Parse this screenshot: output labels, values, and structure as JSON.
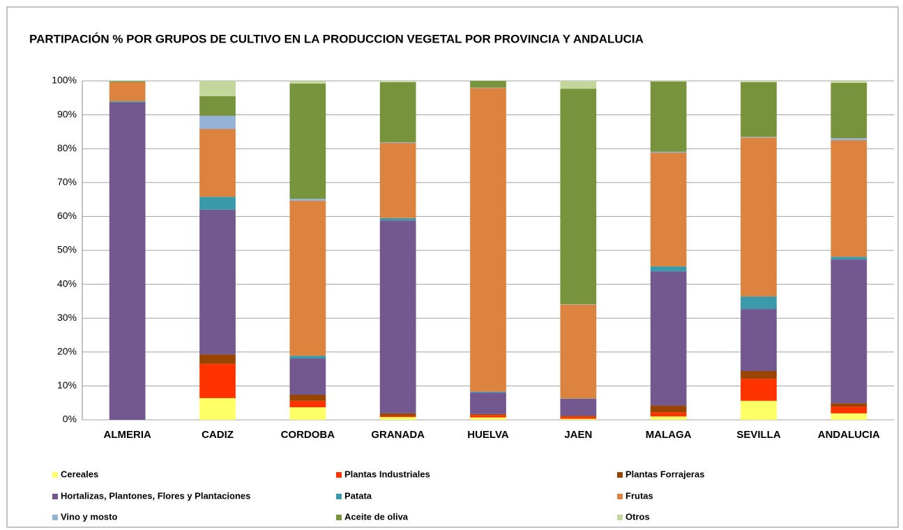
{
  "chart_data": {
    "type": "stacked_bar",
    "title": "PARTIPACIÓN  % POR  GRUPOS DE CULTIVO  EN  LA PRODUCCION VEGETAL POR PROVINCIA Y ANDALUCIA",
    "categories": [
      "ALMERIA",
      "CADIZ",
      "CORDOBA",
      "GRANADA",
      "HUELVA",
      "JAEN",
      "MALAGA",
      "SEVILLA",
      "ANDALUCIA"
    ],
    "series": [
      {
        "name": "Cereales",
        "color": "#ffff66",
        "values": [
          0,
          6.4,
          3.7,
          0.8,
          0.7,
          0.3,
          1.0,
          5.6,
          1.9
        ]
      },
      {
        "name": "Plantas Industriales",
        "color": "#ff3300",
        "values": [
          0,
          10.1,
          1.9,
          0.3,
          0.7,
          0.6,
          1.2,
          6.5,
          2.0
        ]
      },
      {
        "name": "Plantas Forrajeras",
        "color": "#994400",
        "values": [
          0,
          2.8,
          1.8,
          0.8,
          0.3,
          0.3,
          2.0,
          2.3,
          1.0
        ]
      },
      {
        "name": "Hortalizas, Plantones, Flores y Plantaciones",
        "color": "#73588f",
        "values": [
          93.7,
          42.7,
          10.7,
          56.9,
          6.3,
          5.0,
          39.6,
          18.3,
          42.4
        ]
      },
      {
        "name": "Patata",
        "color": "#3a9aaa",
        "values": [
          0.3,
          3.8,
          0.8,
          0.7,
          0.3,
          0.1,
          1.5,
          3.7,
          0.8
        ]
      },
      {
        "name": "Frutas",
        "color": "#dd8340",
        "values": [
          5.6,
          20.0,
          45.7,
          22.2,
          89.6,
          27.7,
          33.5,
          46.9,
          34.4
        ]
      },
      {
        "name": "Vino y mosto",
        "color": "#95b3d7",
        "values": [
          0,
          3.9,
          0.6,
          0.2,
          0.1,
          0.1,
          0.3,
          0.2,
          0.6
        ]
      },
      {
        "name": "Aceite de oliva",
        "color": "#77933c",
        "values": [
          0.3,
          5.8,
          34.0,
          17.7,
          2.0,
          63.6,
          20.7,
          16.1,
          16.3
        ]
      },
      {
        "name": "Otros",
        "color": "#c3d69b",
        "values": [
          0.1,
          4.5,
          0.8,
          0.4,
          0,
          2.3,
          0.2,
          0.4,
          0.6
        ]
      }
    ],
    "ylim": [
      0,
      100
    ],
    "yticks": [
      {
        "value": 0,
        "label": "0%"
      },
      {
        "value": 10,
        "label": "10%"
      },
      {
        "value": 20,
        "label": "20%"
      },
      {
        "value": 30,
        "label": "30%"
      },
      {
        "value": 40,
        "label": "40%"
      },
      {
        "value": 50,
        "label": "50%"
      },
      {
        "value": 60,
        "label": "60%"
      },
      {
        "value": 70,
        "label": "70%"
      },
      {
        "value": 80,
        "label": "80%"
      },
      {
        "value": 90,
        "label": "90%"
      },
      {
        "value": 100,
        "label": "100%"
      }
    ],
    "grid": true,
    "legend": "bottom"
  }
}
